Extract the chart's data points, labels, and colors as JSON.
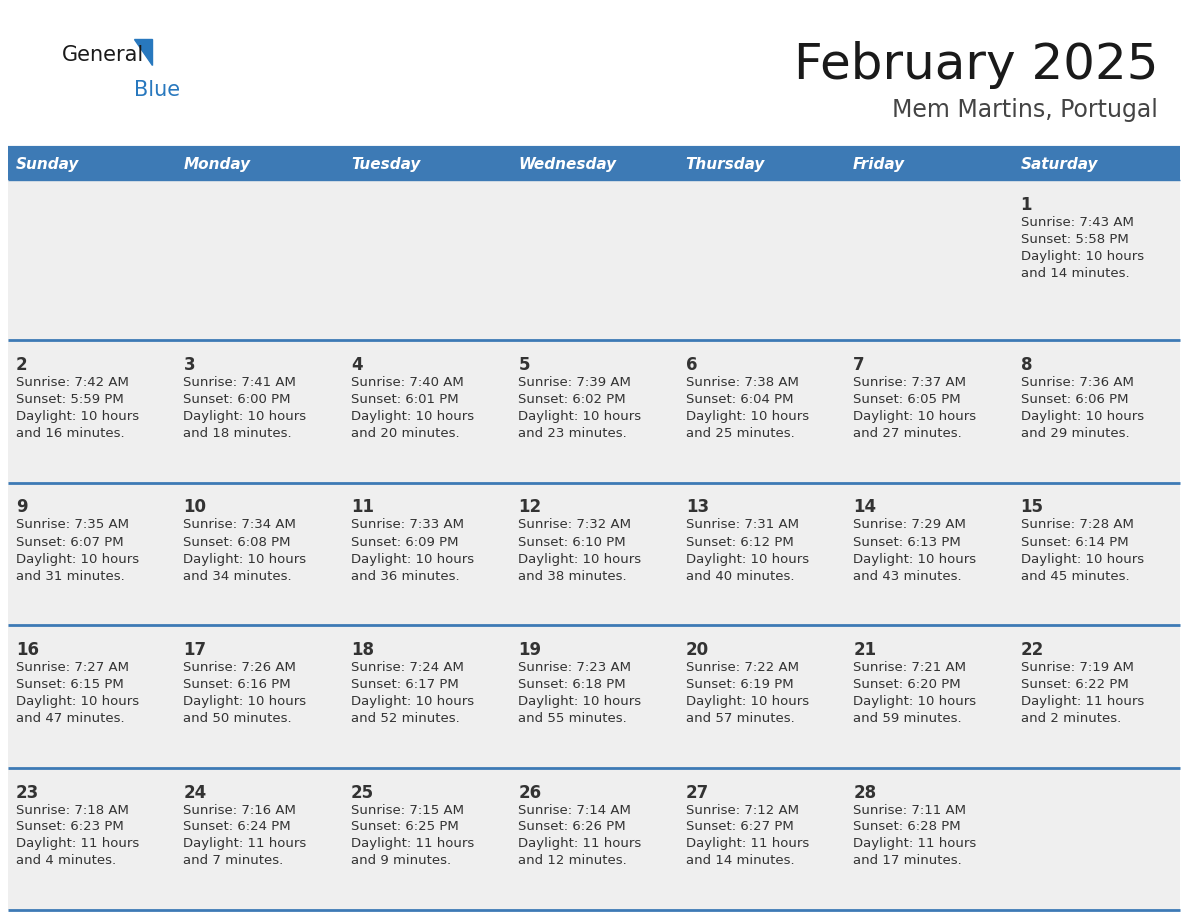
{
  "title": "February 2025",
  "subtitle": "Mem Martins, Portugal",
  "header_bg_color": "#3d7ab5",
  "header_text_color": "#ffffff",
  "cell_bg_color": "#efefef",
  "grid_line_color": "#3d7ab5",
  "day_headers": [
    "Sunday",
    "Monday",
    "Tuesday",
    "Wednesday",
    "Thursday",
    "Friday",
    "Saturday"
  ],
  "title_color": "#1a1a1a",
  "subtitle_color": "#444444",
  "day_num_color": "#333333",
  "info_color": "#333333",
  "logo_general_color": "#1a1a1a",
  "logo_blue_color": "#2878be",
  "calendar_data": [
    [
      null,
      null,
      null,
      null,
      null,
      null,
      {
        "day": 1,
        "sunrise": "7:43 AM",
        "sunset": "5:58 PM",
        "daylight": "10 hours",
        "daylight2": "and 14 minutes."
      }
    ],
    [
      {
        "day": 2,
        "sunrise": "7:42 AM",
        "sunset": "5:59 PM",
        "daylight": "10 hours",
        "daylight2": "and 16 minutes."
      },
      {
        "day": 3,
        "sunrise": "7:41 AM",
        "sunset": "6:00 PM",
        "daylight": "10 hours",
        "daylight2": "and 18 minutes."
      },
      {
        "day": 4,
        "sunrise": "7:40 AM",
        "sunset": "6:01 PM",
        "daylight": "10 hours",
        "daylight2": "and 20 minutes."
      },
      {
        "day": 5,
        "sunrise": "7:39 AM",
        "sunset": "6:02 PM",
        "daylight": "10 hours",
        "daylight2": "and 23 minutes."
      },
      {
        "day": 6,
        "sunrise": "7:38 AM",
        "sunset": "6:04 PM",
        "daylight": "10 hours",
        "daylight2": "and 25 minutes."
      },
      {
        "day": 7,
        "sunrise": "7:37 AM",
        "sunset": "6:05 PM",
        "daylight": "10 hours",
        "daylight2": "and 27 minutes."
      },
      {
        "day": 8,
        "sunrise": "7:36 AM",
        "sunset": "6:06 PM",
        "daylight": "10 hours",
        "daylight2": "and 29 minutes."
      }
    ],
    [
      {
        "day": 9,
        "sunrise": "7:35 AM",
        "sunset": "6:07 PM",
        "daylight": "10 hours",
        "daylight2": "and 31 minutes."
      },
      {
        "day": 10,
        "sunrise": "7:34 AM",
        "sunset": "6:08 PM",
        "daylight": "10 hours",
        "daylight2": "and 34 minutes."
      },
      {
        "day": 11,
        "sunrise": "7:33 AM",
        "sunset": "6:09 PM",
        "daylight": "10 hours",
        "daylight2": "and 36 minutes."
      },
      {
        "day": 12,
        "sunrise": "7:32 AM",
        "sunset": "6:10 PM",
        "daylight": "10 hours",
        "daylight2": "and 38 minutes."
      },
      {
        "day": 13,
        "sunrise": "7:31 AM",
        "sunset": "6:12 PM",
        "daylight": "10 hours",
        "daylight2": "and 40 minutes."
      },
      {
        "day": 14,
        "sunrise": "7:29 AM",
        "sunset": "6:13 PM",
        "daylight": "10 hours",
        "daylight2": "and 43 minutes."
      },
      {
        "day": 15,
        "sunrise": "7:28 AM",
        "sunset": "6:14 PM",
        "daylight": "10 hours",
        "daylight2": "and 45 minutes."
      }
    ],
    [
      {
        "day": 16,
        "sunrise": "7:27 AM",
        "sunset": "6:15 PM",
        "daylight": "10 hours",
        "daylight2": "and 47 minutes."
      },
      {
        "day": 17,
        "sunrise": "7:26 AM",
        "sunset": "6:16 PM",
        "daylight": "10 hours",
        "daylight2": "and 50 minutes."
      },
      {
        "day": 18,
        "sunrise": "7:24 AM",
        "sunset": "6:17 PM",
        "daylight": "10 hours",
        "daylight2": "and 52 minutes."
      },
      {
        "day": 19,
        "sunrise": "7:23 AM",
        "sunset": "6:18 PM",
        "daylight": "10 hours",
        "daylight2": "and 55 minutes."
      },
      {
        "day": 20,
        "sunrise": "7:22 AM",
        "sunset": "6:19 PM",
        "daylight": "10 hours",
        "daylight2": "and 57 minutes."
      },
      {
        "day": 21,
        "sunrise": "7:21 AM",
        "sunset": "6:20 PM",
        "daylight": "10 hours",
        "daylight2": "and 59 minutes."
      },
      {
        "day": 22,
        "sunrise": "7:19 AM",
        "sunset": "6:22 PM",
        "daylight": "11 hours",
        "daylight2": "and 2 minutes."
      }
    ],
    [
      {
        "day": 23,
        "sunrise": "7:18 AM",
        "sunset": "6:23 PM",
        "daylight": "11 hours",
        "daylight2": "and 4 minutes."
      },
      {
        "day": 24,
        "sunrise": "7:16 AM",
        "sunset": "6:24 PM",
        "daylight": "11 hours",
        "daylight2": "and 7 minutes."
      },
      {
        "day": 25,
        "sunrise": "7:15 AM",
        "sunset": "6:25 PM",
        "daylight": "11 hours",
        "daylight2": "and 9 minutes."
      },
      {
        "day": 26,
        "sunrise": "7:14 AM",
        "sunset": "6:26 PM",
        "daylight": "11 hours",
        "daylight2": "and 12 minutes."
      },
      {
        "day": 27,
        "sunrise": "7:12 AM",
        "sunset": "6:27 PM",
        "daylight": "11 hours",
        "daylight2": "and 14 minutes."
      },
      {
        "day": 28,
        "sunrise": "7:11 AM",
        "sunset": "6:28 PM",
        "daylight": "11 hours",
        "daylight2": "and 17 minutes."
      },
      null
    ]
  ],
  "fig_width": 11.88,
  "fig_height": 9.18,
  "dpi": 100
}
